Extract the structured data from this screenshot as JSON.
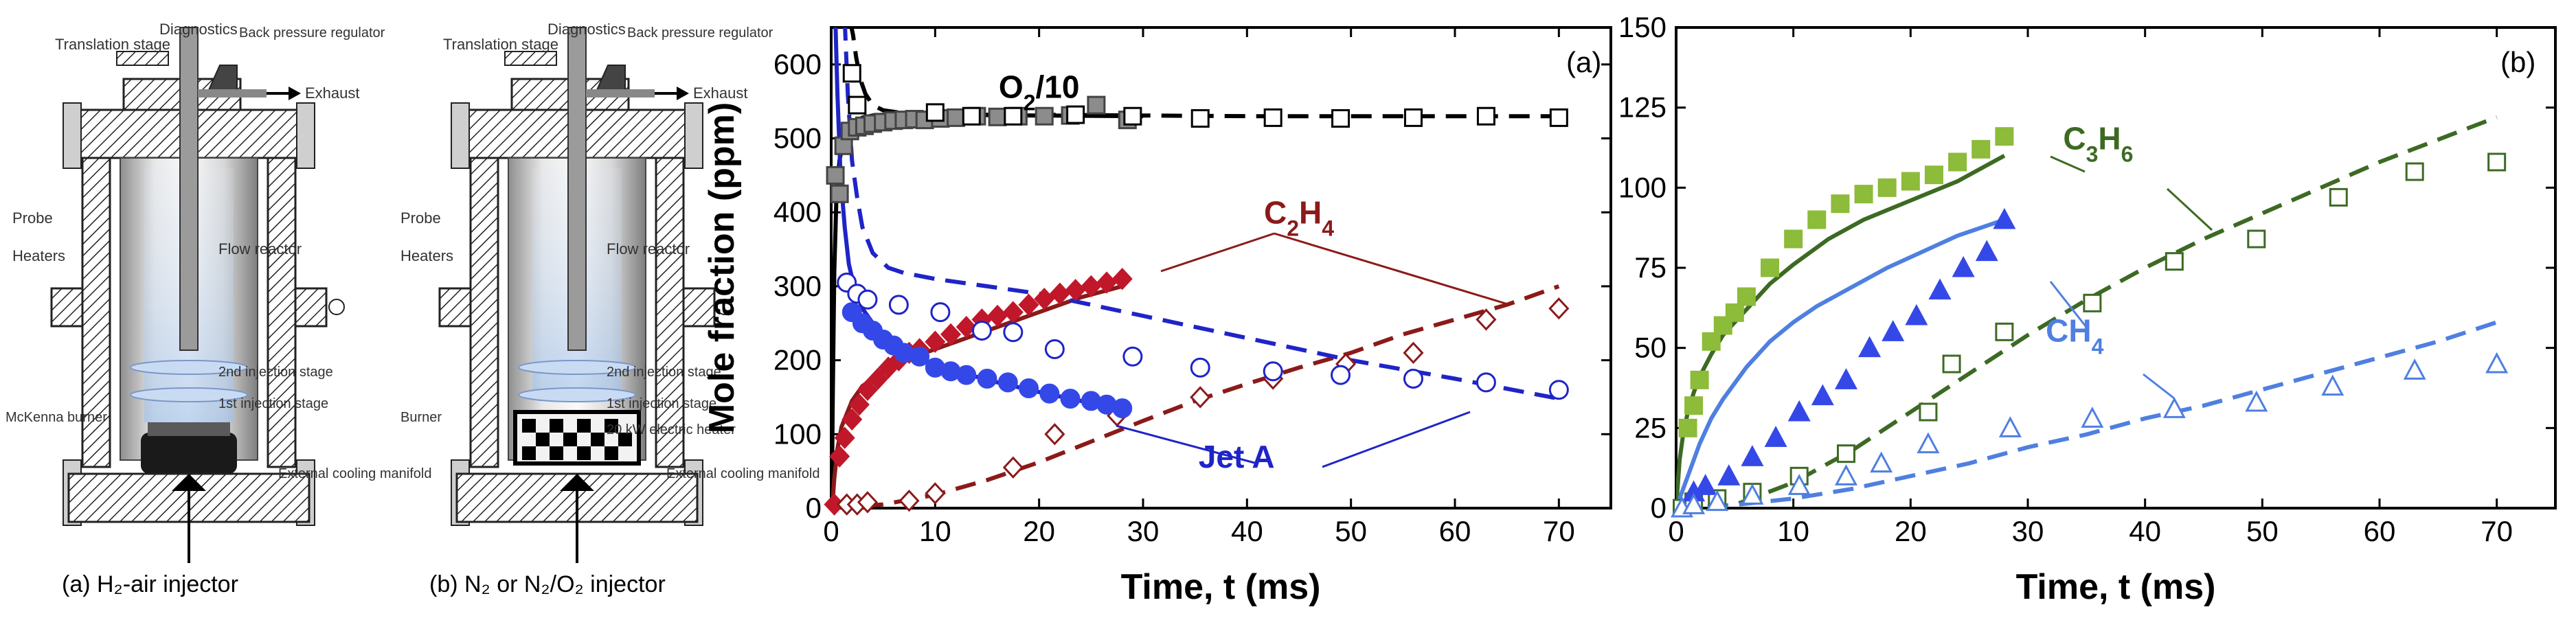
{
  "diagrams": [
    {
      "labels": {
        "translation": "Translation stage",
        "diagnostics": "Diagnostics",
        "backpressure": "Back pressure regulator",
        "exhaust": "Exhaust",
        "probe": "Probe",
        "heaters": "Heaters",
        "flowreactor": "Flow reactor",
        "second": "2nd injection stage",
        "first": "1st injection stage",
        "burner": "McKenna burner",
        "cooling": "External cooling manifold"
      },
      "caption": "(a) H₂-air injector"
    },
    {
      "labels": {
        "translation": "Translation stage",
        "diagnostics": "Diagnostics",
        "backpressure": "Back pressure regulator",
        "exhaust": "Exhaust",
        "probe": "Probe",
        "heaters": "Heaters",
        "flowreactor": "Flow reactor",
        "second": "2nd injection stage",
        "first": "1st injection stage",
        "burner": "Burner",
        "heater20": "20 kW electric heater",
        "cooling": "External cooling manifold"
      },
      "caption": "(b) N₂ or N₂/O₂ injector"
    }
  ],
  "colors": {
    "black": "#000000",
    "gray_marker": "#8c8c8c",
    "darkred": "#8b1a1a",
    "red_marker": "#c0182a",
    "blue": "#1f24c8",
    "blue_marker": "#3448e8",
    "green": "#3d6a23",
    "green_marker": "#8dbb3a",
    "lightblue": "#4f7fe0"
  },
  "chart_data": [
    {
      "type": "scatter",
      "panel_label": "(a)",
      "xlabel": "Time, t (ms)",
      "ylabel": "Mole fraction (ppm)",
      "xlim": [
        0,
        75
      ],
      "ylim": [
        0,
        650
      ],
      "xticks": [
        0,
        10,
        20,
        30,
        40,
        50,
        60,
        70
      ],
      "yticks": [
        0,
        100,
        200,
        300,
        400,
        500,
        600
      ],
      "annotations": [
        {
          "text": "O2/10",
          "x": 20,
          "y": 555,
          "color": "#000000"
        },
        {
          "text": "C2H4",
          "x": 45,
          "y": 385,
          "color": "#8b1a1a"
        },
        {
          "text": "Jet A",
          "x": 39,
          "y": 55,
          "color": "#1f24c8"
        }
      ],
      "series": [
        {
          "marker": "square-filled",
          "color": "#8c8c8c",
          "x": [
            0.4,
            0.8,
            1.2,
            1.8,
            2.5,
            3.2,
            4.0,
            5.0,
            6.0,
            7.0,
            8.0,
            9.0,
            10.5,
            12.0,
            14.0,
            16.0,
            18.0,
            20.5,
            23.0,
            25.5,
            28.5
          ],
          "y": [
            450,
            425,
            490,
            510,
            515,
            517,
            520,
            522,
            524,
            525,
            526,
            525,
            527,
            528,
            530,
            529,
            530,
            530,
            531,
            545,
            525
          ]
        },
        {
          "marker": "square-open",
          "color": "#000000",
          "x": [
            2.0,
            2.5,
            10.0,
            13.5,
            17.5,
            23.5,
            29.0,
            35.5,
            42.5,
            49.0,
            56.0,
            63.0,
            70.0
          ],
          "y": [
            588,
            545,
            535,
            530,
            530,
            532,
            530,
            527,
            528,
            527,
            528,
            530,
            528
          ]
        },
        {
          "marker": "diamond-filled",
          "color": "#c0182a",
          "x": [
            0.3,
            0.8,
            1.3,
            2.0,
            2.7,
            3.5,
            4.5,
            5.5,
            6.5,
            7.5,
            8.5,
            10.0,
            11.5,
            13.0,
            14.5,
            16.0,
            17.5,
            19.0,
            20.5,
            22.0,
            23.5,
            25.0,
            26.5,
            28.0
          ],
          "y": [
            5,
            70,
            95,
            120,
            140,
            160,
            175,
            190,
            200,
            210,
            215,
            225,
            235,
            245,
            255,
            260,
            265,
            275,
            283,
            290,
            295,
            300,
            305,
            310
          ]
        },
        {
          "marker": "diamond-open",
          "color": "#8b1a1a",
          "x": [
            1.5,
            2.5,
            3.5,
            7.5,
            10.0,
            17.5,
            21.5,
            27.5,
            35.5,
            42.5,
            49.5,
            56.0,
            63.0,
            70.0
          ],
          "y": [
            5,
            5,
            8,
            10,
            20,
            55,
            100,
            125,
            150,
            175,
            195,
            210,
            255,
            270
          ]
        },
        {
          "marker": "circle-filled",
          "color": "#3448e8",
          "x": [
            2.0,
            3.0,
            4.0,
            5.0,
            6.0,
            7.0,
            8.5,
            10.0,
            11.5,
            13.0,
            15.0,
            17.0,
            19.0,
            21.0,
            23.0,
            25.0,
            26.5,
            28.0
          ],
          "y": [
            265,
            250,
            240,
            228,
            220,
            210,
            205,
            190,
            185,
            180,
            175,
            170,
            162,
            155,
            148,
            145,
            140,
            135
          ]
        },
        {
          "marker": "circle-open",
          "color": "#1f24c8",
          "x": [
            1.5,
            2.5,
            3.5,
            6.5,
            10.5,
            14.5,
            17.5,
            21.5,
            29.0,
            35.5,
            42.5,
            49.0,
            56.0,
            63.0,
            70.0
          ],
          "y": [
            305,
            290,
            282,
            275,
            265,
            240,
            238,
            215,
            205,
            190,
            185,
            180,
            175,
            170,
            160
          ]
        }
      ],
      "lines": [
        {
          "style": "solid",
          "color": "#000000",
          "x": [
            0.05,
            0.15,
            0.3,
            0.5,
            0.8,
            1.2,
            2.0,
            3.0,
            4.0,
            5.0,
            7.0,
            10.0,
            20.0,
            30.0
          ],
          "y": [
            0,
            150,
            320,
            420,
            470,
            500,
            520,
            528,
            531,
            532,
            532,
            532,
            531,
            530
          ]
        },
        {
          "style": "dashed",
          "color": "#000000",
          "x": [
            1.8,
            2.1,
            2.4,
            2.8,
            3.3,
            4.0,
            5.0,
            7.0,
            10.0,
            15.0,
            20.0,
            30.0,
            40.0,
            50.0,
            60.0,
            70.0
          ],
          "y": [
            660,
            640,
            610,
            580,
            560,
            545,
            538,
            534,
            533,
            532,
            532,
            531,
            530,
            530,
            530,
            530
          ]
        },
        {
          "style": "solid",
          "color": "#8b1a1a",
          "x": [
            0.1,
            0.3,
            0.6,
            1.0,
            2.0,
            3.0,
            5.0,
            7.0,
            10.0,
            13.0,
            16.0,
            20.0,
            24.0,
            28.0
          ],
          "y": [
            0,
            40,
            80,
            110,
            145,
            165,
            185,
            200,
            215,
            230,
            245,
            265,
            285,
            300
          ]
        },
        {
          "style": "dashed",
          "color": "#8b1a1a",
          "x": [
            0.0,
            5.0,
            10.0,
            15.0,
            20.0,
            25.0,
            30.0,
            35.0,
            40.0,
            45.0,
            50.0,
            55.0,
            60.0,
            65.0,
            70.0
          ],
          "y": [
            0,
            5,
            18,
            38,
            62,
            90,
            118,
            145,
            168,
            190,
            210,
            235,
            255,
            275,
            300
          ]
        },
        {
          "style": "solid",
          "color": "#1f24c8",
          "x": [
            0.4,
            0.6,
            0.9,
            1.3,
            1.7,
            2.2,
            3.0,
            4.0,
            5.5,
            7.0,
            9.0,
            12.0,
            16.0,
            20.0,
            24.0,
            28.0
          ],
          "y": [
            660,
            560,
            450,
            380,
            330,
            300,
            270,
            250,
            230,
            215,
            200,
            185,
            170,
            157,
            145,
            135
          ]
        },
        {
          "style": "dashed",
          "color": "#1f24c8",
          "x": [
            1.3,
            1.6,
            2.0,
            2.5,
            3.0,
            4.0,
            5.5,
            7.0,
            10.0,
            15.0,
            20.0,
            30.0,
            40.0,
            50.0,
            60.0,
            70.0
          ],
          "y": [
            660,
            560,
            470,
            420,
            380,
            345,
            325,
            318,
            310,
            300,
            290,
            260,
            230,
            200,
            175,
            148
          ]
        }
      ]
    },
    {
      "type": "scatter",
      "panel_label": "(b)",
      "xlabel": "Time, t (ms)",
      "xlim": [
        0,
        75
      ],
      "ylim": [
        0,
        150
      ],
      "xticks": [
        0,
        10,
        20,
        30,
        40,
        50,
        60,
        70
      ],
      "yticks": [
        0,
        25,
        50,
        75,
        100,
        125,
        150
      ],
      "annotations": [
        {
          "text": "C3H6",
          "x": 36,
          "y": 112,
          "color": "#3d6a23"
        },
        {
          "text": "CH4",
          "x": 34,
          "y": 52,
          "color": "#4f7fe0"
        }
      ],
      "series": [
        {
          "marker": "square-filled",
          "color": "#8dbb3a",
          "x": [
            0.5,
            1.0,
            1.5,
            2.0,
            3.0,
            4.0,
            5.0,
            6.0,
            8.0,
            10.0,
            12.0,
            14.0,
            16.0,
            18.0,
            20.0,
            22.0,
            24.0,
            26.0,
            28.0
          ],
          "y": [
            0,
            25,
            32,
            40,
            52,
            57,
            61,
            66,
            75,
            84,
            90,
            95,
            98,
            100,
            102,
            104,
            108,
            112,
            116
          ]
        },
        {
          "marker": "square-open",
          "color": "#3d6a23",
          "x": [
            0.5,
            1.5,
            3.5,
            6.5,
            10.5,
            14.5,
            21.5,
            23.5,
            28.0,
            35.5,
            42.5,
            49.5,
            56.5,
            63.0,
            70.0
          ],
          "y": [
            0,
            2,
            3,
            5,
            10,
            17,
            30,
            45,
            55,
            64,
            77,
            84,
            97,
            105,
            108
          ]
        },
        {
          "marker": "triangle-filled",
          "color": "#3448e8",
          "x": [
            1.5,
            2.5,
            4.5,
            6.5,
            8.5,
            10.5,
            12.5,
            14.5,
            16.5,
            18.5,
            20.5,
            22.5,
            24.5,
            26.5,
            28.0
          ],
          "y": [
            5,
            7,
            10,
            16,
            22,
            30,
            35,
            40,
            50,
            55,
            60,
            68,
            75,
            80,
            90
          ]
        },
        {
          "marker": "triangle-open",
          "color": "#4f7fe0",
          "x": [
            0.5,
            1.5,
            3.5,
            6.5,
            10.5,
            14.5,
            17.5,
            21.5,
            28.5,
            35.5,
            42.5,
            49.5,
            56.0,
            63.0,
            70.0
          ],
          "y": [
            0,
            1,
            2,
            4,
            7,
            10,
            14,
            20,
            25,
            28,
            31,
            33,
            38,
            43,
            45
          ]
        }
      ],
      "lines": [
        {
          "style": "solid",
          "color": "#3d6a23",
          "x": [
            0.0,
            0.3,
            0.6,
            1.0,
            1.5,
            2.0,
            3.0,
            4.0,
            5.0,
            6.0,
            8.0,
            10.0,
            13.0,
            16.0,
            20.0,
            24.0,
            28.0
          ],
          "y": [
            0,
            15,
            23,
            30,
            36,
            41,
            48,
            54,
            58,
            62,
            70,
            76,
            84,
            90,
            96,
            102,
            110
          ]
        },
        {
          "style": "dashed",
          "color": "#3d6a23",
          "x": [
            0.0,
            5.0,
            10.0,
            15.0,
            20.0,
            25.0,
            30.0,
            35.0,
            40.0,
            45.0,
            50.0,
            55.0,
            60.0,
            65.0,
            70.0
          ],
          "y": [
            0,
            1,
            8,
            18,
            30,
            42,
            54,
            65,
            75,
            84,
            92,
            100,
            108,
            115,
            122
          ]
        },
        {
          "style": "solid",
          "color": "#4f7fe0",
          "x": [
            0.0,
            0.5,
            1.0,
            2.0,
            3.0,
            4.0,
            6.0,
            8.0,
            10.0,
            12.0,
            15.0,
            18.0,
            21.0,
            24.0,
            28.0
          ],
          "y": [
            0,
            5,
            10,
            20,
            28,
            34,
            44,
            52,
            58,
            63,
            69,
            75,
            80,
            85,
            90
          ]
        },
        {
          "style": "dashed",
          "color": "#4f7fe0",
          "x": [
            0.0,
            5.0,
            10.0,
            15.0,
            20.0,
            25.0,
            30.0,
            35.0,
            40.0,
            45.0,
            50.0,
            55.0,
            60.0,
            65.0,
            70.0
          ],
          "y": [
            0,
            1,
            3,
            6,
            10,
            14,
            19,
            23,
            28,
            32,
            37,
            42,
            47,
            52,
            58
          ]
        }
      ]
    }
  ]
}
